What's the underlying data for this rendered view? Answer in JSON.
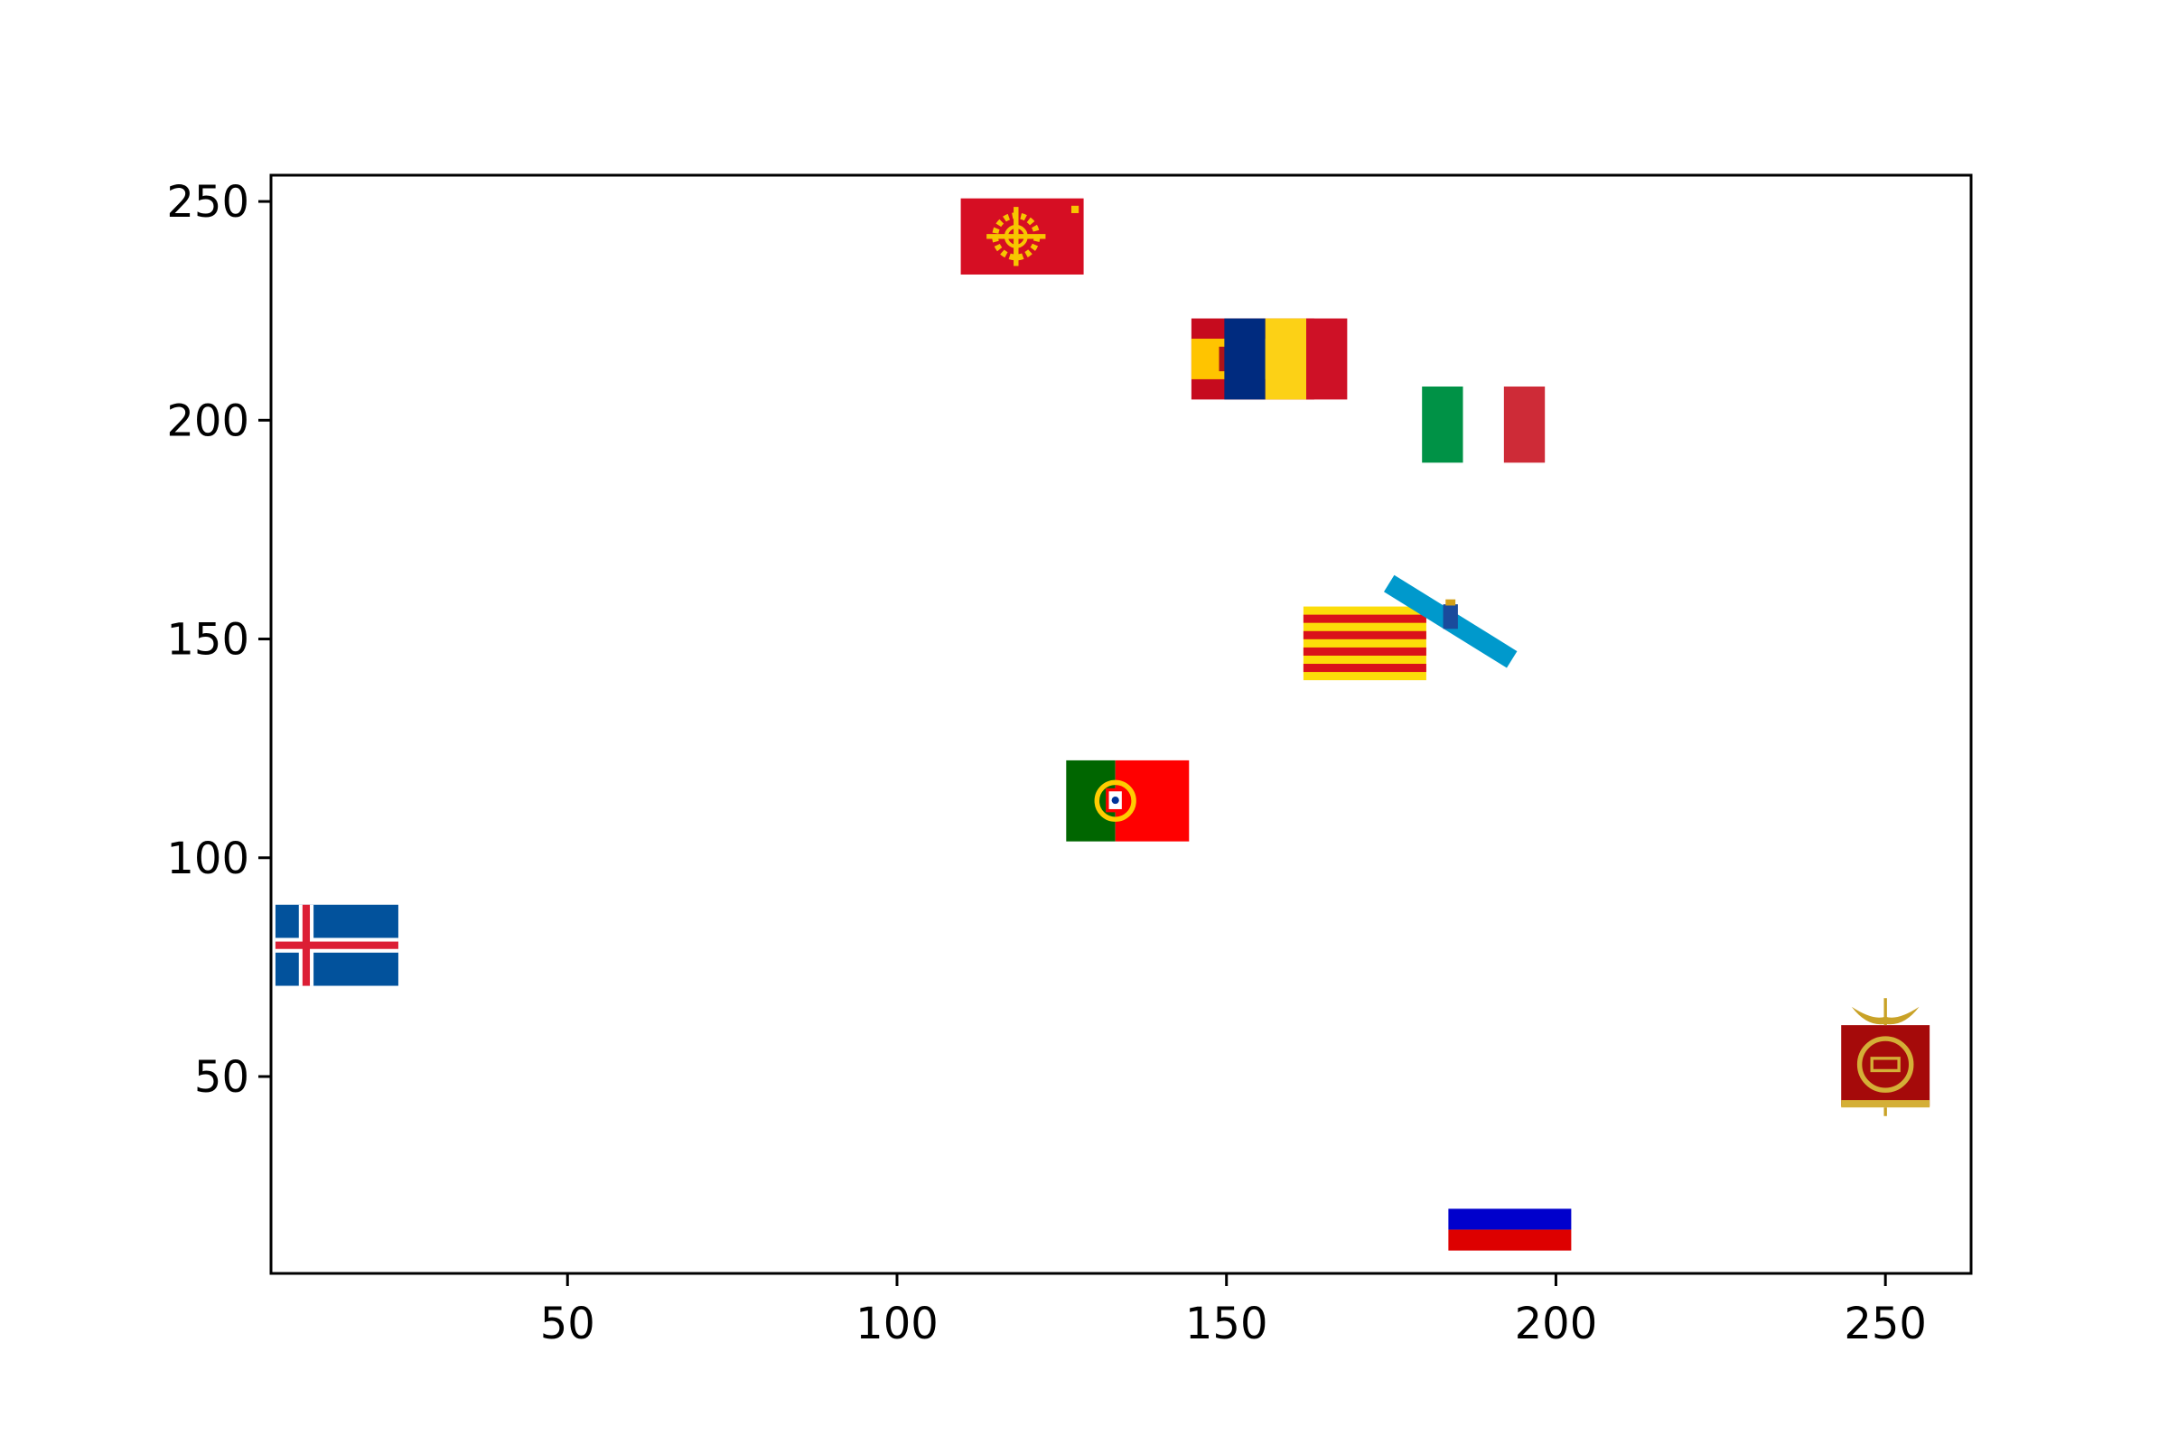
{
  "chart_data": {
    "type": "scatter",
    "marker": "flag images",
    "xlim": [
      5,
      263
    ],
    "ylim": [
      5,
      256
    ],
    "grid": false,
    "legend": "none",
    "x_ticks": [
      50,
      100,
      150,
      200,
      250
    ],
    "y_ticks": [
      50,
      100,
      150,
      200,
      250
    ],
    "points": [
      {
        "x": 15,
        "y": 80,
        "flag": "iceland-flag"
      },
      {
        "x": 119,
        "y": 242,
        "flag": "occitania-flag"
      },
      {
        "x": 154,
        "y": 214,
        "flag": "spain-flag"
      },
      {
        "x": 159,
        "y": 214,
        "flag": "romania-flag"
      },
      {
        "x": 189,
        "y": 199,
        "flag": "italy-flag"
      },
      {
        "x": 171,
        "y": 149,
        "flag": "catalonia-flag"
      },
      {
        "x": 184,
        "y": 154,
        "flag": "galicia-flag"
      },
      {
        "x": 135,
        "y": 113,
        "flag": "portugal-flag"
      },
      {
        "x": 193,
        "y": 15,
        "flag": "romansh-flag"
      },
      {
        "x": 250,
        "y": 55,
        "flag": "roman-vexillum-flag"
      }
    ]
  }
}
